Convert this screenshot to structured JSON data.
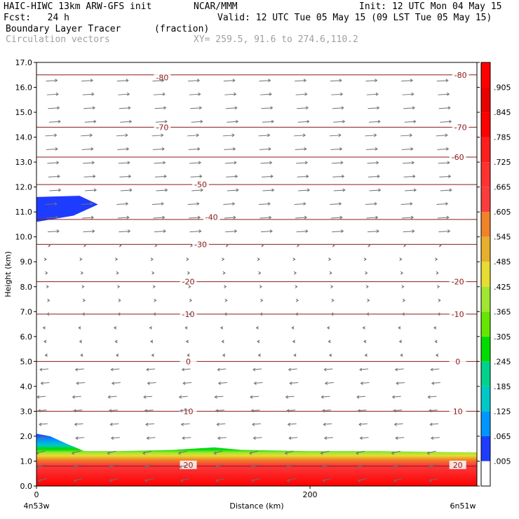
{
  "header": {
    "model": "HAIC-HIWC 13km ARW-GFS init",
    "org": "NCAR/MMM",
    "init": "Init: 12 UTC Mon 04 May 15",
    "fcst": "Fcst:   24 h",
    "valid": "Valid: 12 UTC Tue 05 May 15 (09 LST Tue 05 May 15)",
    "field": "Boundary Layer Tracer",
    "field_units": "(fraction)",
    "vectors": "Circulation vectors",
    "xy": "XY= 259.5, 91.6 to 274.6,110.2"
  },
  "chart_data": {
    "type": "cross-section",
    "xlabel": "Distance (km)",
    "ylabel": "Height (km)",
    "xlim": [
      0,
      322
    ],
    "ylim": [
      0,
      17
    ],
    "x_ticks": [
      0,
      200
    ],
    "x_tick_labels": [
      "0",
      "200"
    ],
    "x_end_labels": {
      "left": "4n53w",
      "right": "6n51w"
    },
    "y_ticks": [
      0,
      1,
      2,
      3,
      4,
      5,
      6,
      7,
      8,
      9,
      10,
      11,
      12,
      13,
      14,
      15,
      16,
      17
    ],
    "y_tick_labels": [
      "0.0",
      "1.0",
      "2.0",
      "3.0",
      "4.0",
      "5.0",
      "6.0",
      "7.0",
      "8.0",
      "9.0",
      "10.0",
      "11.0",
      "12.0",
      "13.0",
      "14.0",
      "15.0",
      "16.0",
      "17.0"
    ],
    "colorbar": {
      "labels": [
        ".005",
        ".065",
        ".125",
        ".185",
        ".245",
        ".305",
        ".365",
        ".425",
        ".485",
        ".545",
        ".605",
        ".665",
        ".725",
        ".785",
        ".845",
        ".905"
      ],
      "colors": [
        "#ffffff",
        "#1e3cff",
        "#0096ff",
        "#00c8c8",
        "#00d28c",
        "#00dc00",
        "#64e600",
        "#a0e632",
        "#e6dc32",
        "#e6af2d",
        "#f08228",
        "#fa3c3c",
        "#ff3232",
        "#ff1e1e",
        "#ff0000",
        "#e60000",
        "#ff0000"
      ]
    },
    "temperature_contours": [
      {
        "label": "20",
        "z": 0.8
      },
      {
        "label": "10",
        "z": 3.0
      },
      {
        "label": "0",
        "z": 5.0
      },
      {
        "label": "-10",
        "z": 6.9
      },
      {
        "label": "-20",
        "z": 8.2
      },
      {
        "label": "-30",
        "z": 9.7
      },
      {
        "label": "-40",
        "z": 10.7
      },
      {
        "label": "-50",
        "z": 12.1
      },
      {
        "label": "-60",
        "z": 13.2
      },
      {
        "label": "-70",
        "z": 14.4
      },
      {
        "label": "-80",
        "z": 16.5
      }
    ],
    "contour_labels": [
      {
        "text": "-80",
        "x": 92,
        "z": 16.4
      },
      {
        "text": "-80",
        "x": 310,
        "z": 16.5
      },
      {
        "text": "-70",
        "x": 92,
        "z": 14.4
      },
      {
        "text": "-70",
        "x": 310,
        "z": 14.4
      },
      {
        "text": "-60",
        "x": 308,
        "z": 13.2
      },
      {
        "text": "-50",
        "x": 120,
        "z": 12.1
      },
      {
        "text": "-40",
        "x": 128,
        "z": 10.8
      },
      {
        "text": "-30",
        "x": 120,
        "z": 9.7
      },
      {
        "text": "-20",
        "x": 111,
        "z": 8.2
      },
      {
        "text": "-20",
        "x": 308,
        "z": 8.2
      },
      {
        "text": "-10",
        "x": 111,
        "z": 6.9
      },
      {
        "text": "-10",
        "x": 308,
        "z": 6.9
      },
      {
        "text": "0",
        "x": 111,
        "z": 5.0
      },
      {
        "text": "0",
        "x": 308,
        "z": 5.0
      },
      {
        "text": "10",
        "x": 111,
        "z": 3.0
      },
      {
        "text": "10",
        "x": 308,
        "z": 3.0
      },
      {
        "text": "20",
        "x": 111,
        "z": 0.85
      },
      {
        "text": "20",
        "x": 308,
        "z": 0.85
      }
    ],
    "tracer_surface_layer_top_km": [
      {
        "x": 0,
        "z": 2.1
      },
      {
        "x": 10,
        "z": 2.0
      },
      {
        "x": 22,
        "z": 1.7
      },
      {
        "x": 35,
        "z": 1.4
      },
      {
        "x": 60,
        "z": 1.4
      },
      {
        "x": 100,
        "z": 1.45
      },
      {
        "x": 130,
        "z": 1.55
      },
      {
        "x": 150,
        "z": 1.45
      },
      {
        "x": 200,
        "z": 1.4
      },
      {
        "x": 250,
        "z": 1.4
      },
      {
        "x": 322,
        "z": 1.35
      }
    ],
    "tracer_upper_patch": {
      "x": [
        0,
        45
      ],
      "z": [
        10.6,
        11.6
      ]
    },
    "grid": false,
    "legend": "right colorbar"
  }
}
